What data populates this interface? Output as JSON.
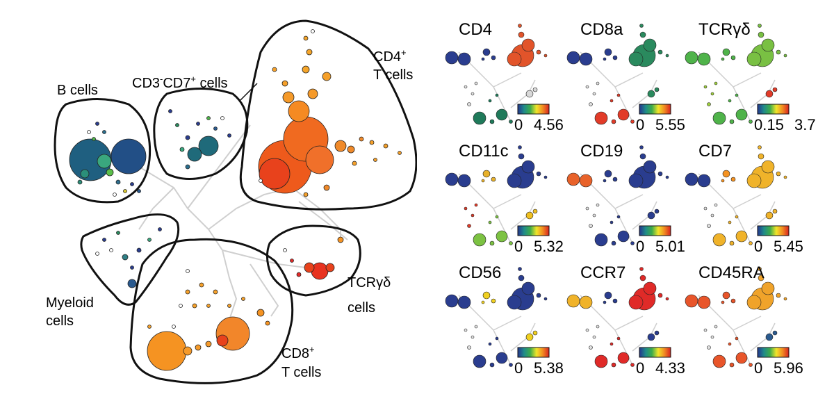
{
  "main": {
    "groups": [
      {
        "key": "b",
        "lines": [
          "B cells"
        ],
        "color": "#1f5f80"
      },
      {
        "key": "cd3cd7",
        "lines": [
          "CD3-CD7+ cells"
        ],
        "color": "#1f6a7a"
      },
      {
        "key": "cd4",
        "lines": [
          "CD4+",
          "T cells"
        ],
        "color": "#ee5a1c"
      },
      {
        "key": "myeloid",
        "lines": [
          "Myeloid",
          "cells"
        ],
        "color": "#2f7f86"
      },
      {
        "key": "cd8",
        "lines": [
          "CD8+",
          "T cells"
        ],
        "color": "#f59322"
      },
      {
        "key": "tcrgd",
        "lines": [
          "TCRγδ",
          "cells"
        ],
        "color": "#e8321f"
      }
    ]
  },
  "panels": [
    {
      "marker": "CD4",
      "min": "0",
      "max": "4.56",
      "colors": {
        "b": "#2a3d8f",
        "cd4": "#e2542a",
        "cd3": "#2a3d8f",
        "cd8": "#1f7a5a",
        "tcr": "#d8d8d8",
        "my": "#e0e0e0"
      }
    },
    {
      "marker": "CD8a",
      "min": "0",
      "max": "5.55",
      "colors": {
        "b": "#2a3d8f",
        "cd4": "#2a8a5e",
        "cd3": "#2a3d8f",
        "cd8": "#e23b28",
        "tcr": "#2a8a5e",
        "my": "#e0e0e0"
      }
    },
    {
      "marker": "TCRγδ",
      "min": "0.15",
      "max": "3.7",
      "colors": {
        "b": "#4fb34a",
        "cd4": "#79c043",
        "cd3": "#4fb34a",
        "cd8": "#4fb34a",
        "tcr": "#e23b28",
        "my": "#9fcf3c"
      }
    },
    {
      "marker": "CD11c",
      "min": "0",
      "max": "5.32",
      "colors": {
        "b": "#2a3d8f",
        "cd4": "#2a3d8f",
        "cd3": "#e8b12a",
        "cd8": "#7cc242",
        "tcr": "#f0c020",
        "my": "#e23b28"
      }
    },
    {
      "marker": "CD19",
      "min": "0",
      "max": "5.01",
      "colors": {
        "b": "#e8622a",
        "cd4": "#2a3d8f",
        "cd3": "#2a3d8f",
        "cd8": "#2a3d8f",
        "tcr": "#2a3d8f",
        "my": "#e0e0e0"
      }
    },
    {
      "marker": "CD7",
      "min": "0",
      "max": "5.45",
      "colors": {
        "b": "#2a3d8f",
        "cd4": "#f0b32a",
        "cd3": "#f59322",
        "cd8": "#f0b32a",
        "tcr": "#f0b32a",
        "my": "#e0e0e0"
      }
    },
    {
      "marker": "CD56",
      "min": "0",
      "max": "5.38",
      "colors": {
        "b": "#2a3d8f",
        "cd4": "#2a3d8f",
        "cd3": "#f0d020",
        "cd8": "#2a3d8f",
        "tcr": "#f0d020",
        "my": "#e0e0e0"
      }
    },
    {
      "marker": "CCR7",
      "min": "0",
      "max": "4.33",
      "colors": {
        "b": "#f0b32a",
        "cd4": "#e02a28",
        "cd3": "#2a3d8f",
        "cd8": "#e02a28",
        "tcr": "#2a3d8f",
        "my": "#e0e0e0"
      }
    },
    {
      "marker": "CD45RA",
      "min": "0",
      "max": "5.96",
      "colors": {
        "b": "#e8552a",
        "cd4": "#f0a32a",
        "cd3": "#e8552a",
        "cd8": "#e8552a",
        "tcr": "#2a5a8f",
        "my": "#e0e0e0"
      }
    }
  ],
  "colorscale": [
    "#25348c",
    "#1f8a8a",
    "#3cab4b",
    "#f1e52a",
    "#f18b22",
    "#d8231f"
  ]
}
